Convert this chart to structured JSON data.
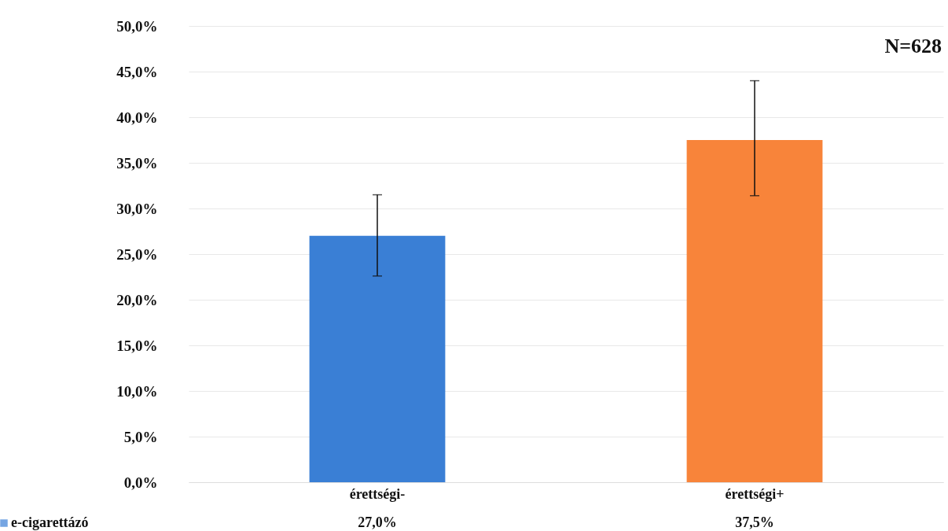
{
  "chart_data": {
    "type": "bar",
    "categories": [
      "érettségi-",
      "érettségi+"
    ],
    "series": [
      {
        "name": "e-cigarettázó",
        "values": [
          27.0,
          37.5
        ],
        "errors": [
          [
            22.6,
            31.5
          ],
          [
            31.4,
            44.0
          ]
        ],
        "value_labels": [
          "27,0%",
          "37,5%"
        ]
      }
    ],
    "colors": [
      "#3a7fd5",
      "#f8843a"
    ],
    "ylim": [
      0,
      50
    ],
    "yticks": [
      {
        "value": 0,
        "label": "0,0%"
      },
      {
        "value": 5,
        "label": "5,0%"
      },
      {
        "value": 10,
        "label": "10,0%"
      },
      {
        "value": 15,
        "label": "15,0%"
      },
      {
        "value": 20,
        "label": "20,0%"
      },
      {
        "value": 25,
        "label": "25,0%"
      },
      {
        "value": 30,
        "label": "30,0%"
      },
      {
        "value": 35,
        "label": "35,0%"
      },
      {
        "value": 40,
        "label": "40,0%"
      },
      {
        "value": 45,
        "label": "45,0%"
      },
      {
        "value": 50,
        "label": "50,0%"
      }
    ],
    "grid": "y",
    "legend": "bottom left",
    "annotations": [
      "N=628"
    ]
  }
}
